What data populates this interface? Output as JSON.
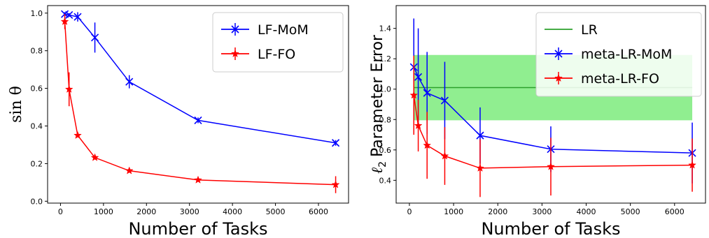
{
  "chart_data": [
    {
      "type": "line",
      "xlabel": "Number of Tasks",
      "ylabel": "sin θ",
      "xlim": [
        -300,
        6700
      ],
      "ylim": [
        -0.01,
        1.04
      ],
      "xticks": [
        0,
        1000,
        2000,
        3000,
        4000,
        5000,
        6000
      ],
      "yticks": [
        0.0,
        0.2,
        0.4,
        0.6,
        0.8,
        1.0
      ],
      "legend": "top-right",
      "series": [
        {
          "name": "LF-MoM",
          "color": "#0000ff",
          "marker": "x",
          "x": [
            100,
            200,
            400,
            800,
            1600,
            3200,
            6400
          ],
          "y": [
            0.995,
            0.99,
            0.98,
            0.87,
            0.635,
            0.43,
            0.31
          ],
          "err": [
            0.01,
            0.01,
            0.025,
            0.08,
            0.035,
            0.015,
            0.015
          ]
        },
        {
          "name": "LF-FO",
          "color": "#ff0000",
          "marker": "*",
          "x": [
            100,
            200,
            400,
            800,
            1600,
            3200,
            6400
          ],
          "y": [
            0.955,
            0.595,
            0.35,
            0.232,
            0.162,
            0.113,
            0.088
          ],
          "err": [
            0.04,
            0.09,
            0.01,
            0.01,
            0.008,
            0.008,
            0.045
          ]
        }
      ]
    },
    {
      "type": "line",
      "xlabel": "Number of Tasks",
      "ylabel_prefix": "ℓ",
      "ylabel_sub": "2",
      "ylabel_rest": "Parameter Error",
      "xlim": [
        -300,
        6700
      ],
      "ylim": [
        0.25,
        1.55
      ],
      "xticks": [
        0,
        1000,
        2000,
        3000,
        4000,
        5000,
        6000
      ],
      "yticks": [
        0.4,
        0.6,
        0.8,
        1.0,
        1.2,
        1.4
      ],
      "legend": "top-right",
      "band": {
        "name": "LR",
        "color": "#2ca02c",
        "fill": "#90ee90",
        "x": [
          100,
          6400
        ],
        "y": 1.01,
        "lo": 0.795,
        "hi": 1.225
      },
      "series": [
        {
          "name": "meta-LR-MoM",
          "color": "#0000ff",
          "marker": "x",
          "x": [
            100,
            200,
            400,
            800,
            1600,
            3200,
            6400
          ],
          "y": [
            1.145,
            1.08,
            0.975,
            0.925,
            0.695,
            0.605,
            0.58
          ],
          "err": [
            0.32,
            0.32,
            0.27,
            0.255,
            0.185,
            0.15,
            0.2
          ]
        },
        {
          "name": "meta-LR-FO",
          "color": "#ff0000",
          "marker": "*",
          "x": [
            100,
            200,
            400,
            800,
            1600,
            3200,
            6400
          ],
          "y": [
            0.96,
            0.76,
            0.63,
            0.56,
            0.48,
            0.49,
            0.5
          ],
          "err": [
            0.26,
            0.17,
            0.22,
            0.19,
            0.19,
            0.19,
            0.175
          ]
        }
      ]
    }
  ]
}
